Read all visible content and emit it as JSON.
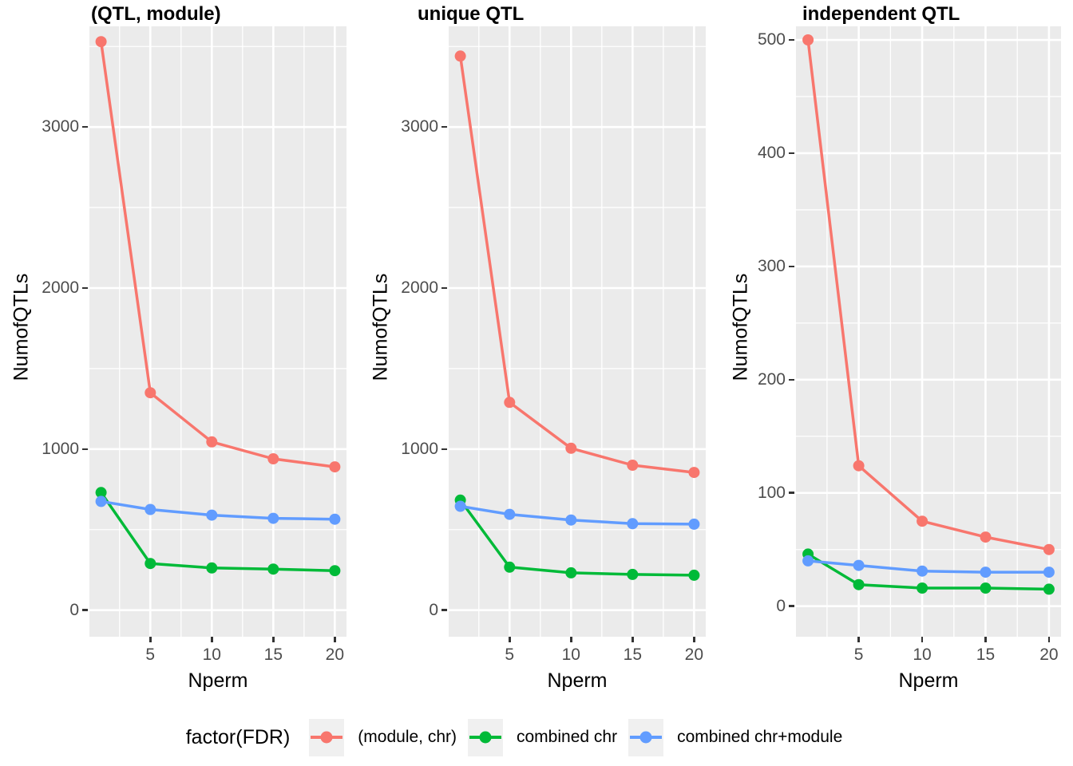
{
  "figure": {
    "x_axis_label": "Nperm",
    "y_axis_label": "NumofQTLs",
    "legend": {
      "title": "factor(FDR)",
      "entries": [
        {
          "label": "(module, chr)",
          "color": "#F8766D"
        },
        {
          "label": "combined chr",
          "color": "#00BA38"
        },
        {
          "label": "combined chr+module",
          "color": "#619CFF"
        }
      ]
    },
    "colors": {
      "panel_background": "#EBEBEB",
      "gridline": "#FFFFFF",
      "tick_text": "#4D4D4D",
      "legend_key_background": "#F0F0F0"
    }
  },
  "chart_data": [
    {
      "type": "line",
      "title": "(QTL, module)",
      "xlabel": "Nperm",
      "ylabel": "NumofQTLs",
      "x": [
        1,
        5,
        10,
        15,
        20
      ],
      "x_ticks": [
        5,
        10,
        15,
        20
      ],
      "y_ticks": [
        0,
        1000,
        2000,
        3000
      ],
      "xlim": [
        0.05,
        20.95
      ],
      "ylim": [
        -165,
        3625
      ],
      "grid": true,
      "legend_position": "bottom",
      "series": [
        {
          "name": "(module, chr)",
          "color": "#F8766D",
          "values": [
            3530,
            1350,
            1045,
            940,
            890
          ]
        },
        {
          "name": "combined chr",
          "color": "#00BA38",
          "values": [
            730,
            290,
            262,
            255,
            245
          ]
        },
        {
          "name": "combined chr+module",
          "color": "#619CFF",
          "values": [
            675,
            625,
            590,
            570,
            565
          ]
        }
      ]
    },
    {
      "type": "line",
      "title": "unique QTL",
      "xlabel": "Nperm",
      "ylabel": "NumofQTLs",
      "x": [
        1,
        5,
        10,
        15,
        20
      ],
      "x_ticks": [
        5,
        10,
        15,
        20
      ],
      "y_ticks": [
        0,
        1000,
        2000,
        3000
      ],
      "xlim": [
        0.05,
        20.95
      ],
      "ylim": [
        -165,
        3625
      ],
      "grid": true,
      "legend_position": "bottom",
      "series": [
        {
          "name": "(module, chr)",
          "color": "#F8766D",
          "values": [
            3440,
            1290,
            1005,
            900,
            855
          ]
        },
        {
          "name": "combined chr",
          "color": "#00BA38",
          "values": [
            683,
            267,
            232,
            222,
            217
          ]
        },
        {
          "name": "combined chr+module",
          "color": "#619CFF",
          "values": [
            645,
            595,
            560,
            537,
            534
          ]
        }
      ]
    },
    {
      "type": "line",
      "title": "independent QTL",
      "xlabel": "Nperm",
      "ylabel": "NumofQTLs",
      "x": [
        1,
        5,
        10,
        15,
        20
      ],
      "x_ticks": [
        5,
        10,
        15,
        20
      ],
      "y_ticks": [
        0,
        100,
        200,
        300,
        400,
        500
      ],
      "xlim": [
        0.05,
        20.95
      ],
      "ylim": [
        -27,
        512
      ],
      "grid": true,
      "legend_position": "bottom",
      "series": [
        {
          "name": "(module, chr)",
          "color": "#F8766D",
          "values": [
            500,
            124,
            75,
            61,
            50
          ]
        },
        {
          "name": "combined chr",
          "color": "#00BA38",
          "values": [
            46,
            19,
            16,
            16,
            15
          ]
        },
        {
          "name": "combined chr+module",
          "color": "#619CFF",
          "values": [
            40,
            36,
            31,
            30,
            30
          ]
        }
      ]
    }
  ]
}
